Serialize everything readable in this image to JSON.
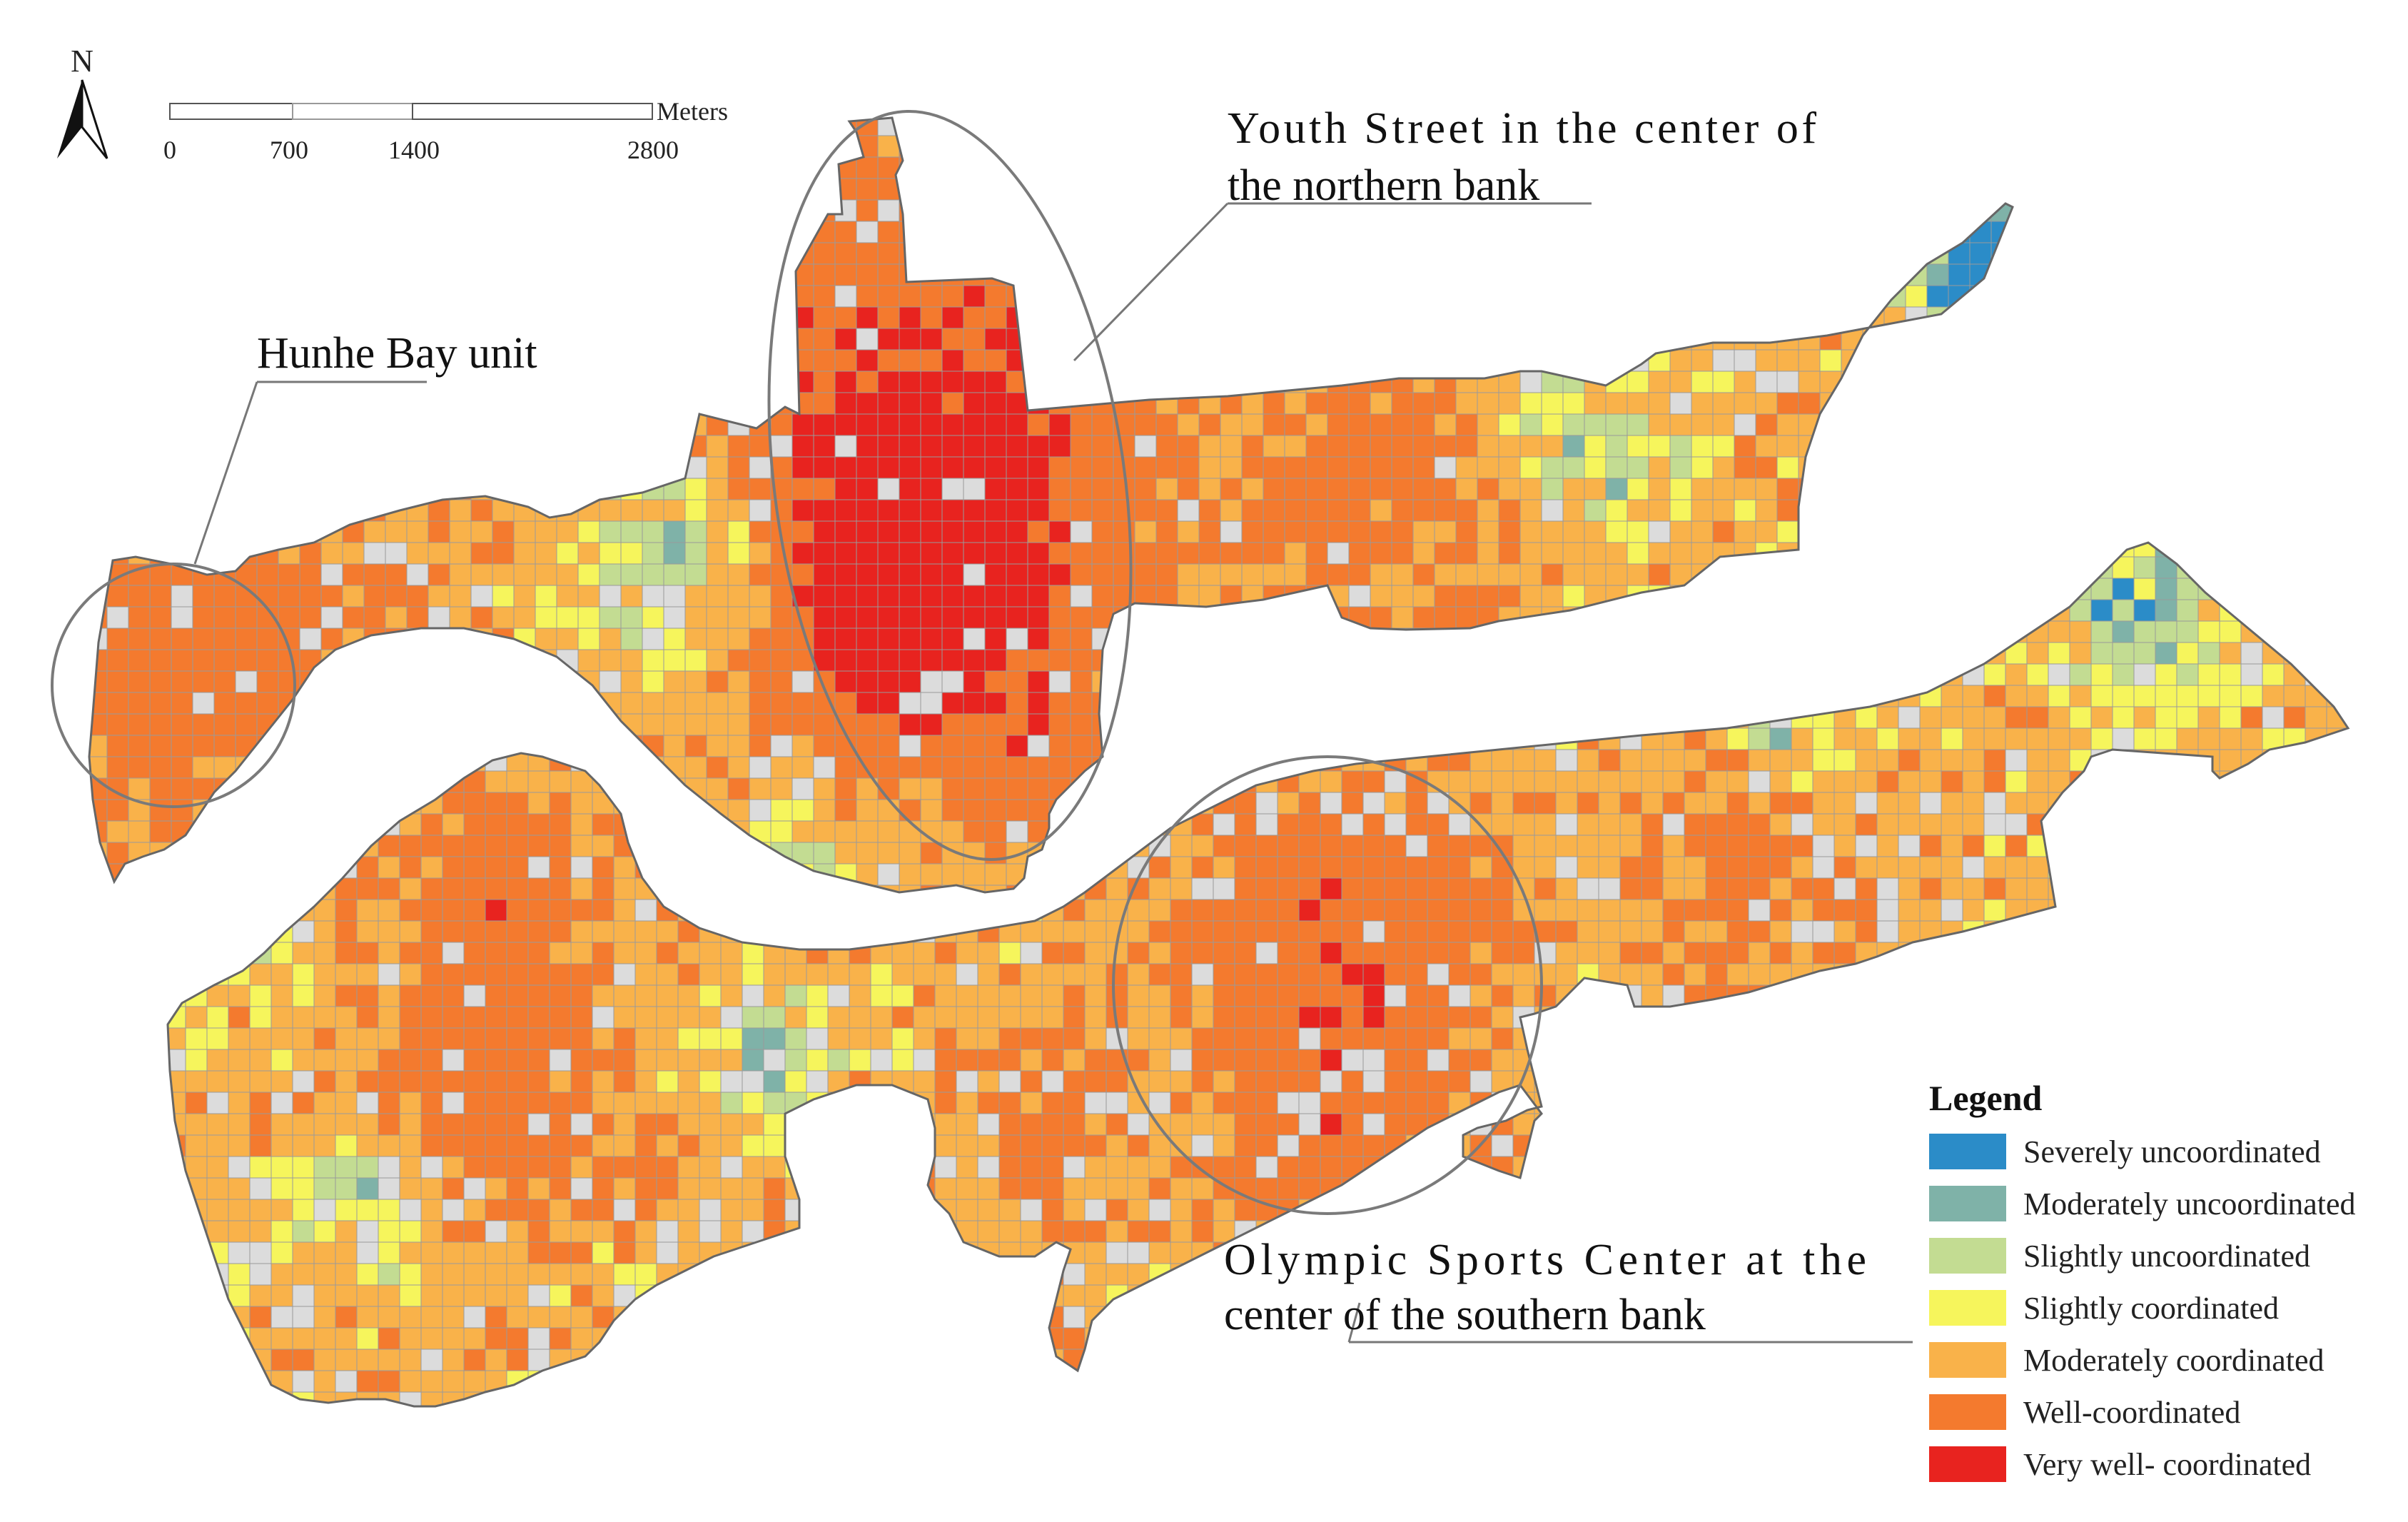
{
  "north_arrow": {
    "label": "N"
  },
  "scale_bar": {
    "unit": "Meters",
    "ticks": [
      "0",
      "700",
      "1400",
      "2800"
    ]
  },
  "annotations": {
    "hunhe_bay": "Hunhe Bay unit",
    "youth_street_line1": "Youth Street in the center of",
    "youth_street_line2": "the northern bank",
    "olympic_line1": "Olympic Sports Center at the",
    "olympic_line2": "center of the southern bank"
  },
  "legend": {
    "title": "Legend",
    "items": [
      {
        "label": "Severely uncoordinated",
        "color": "#2b8cc8"
      },
      {
        "label": "Moderately uncoordinated",
        "color": "#7fb2a8"
      },
      {
        "label": "Slightly uncoordinated",
        "color": "#c3dc92"
      },
      {
        "label": "Slightly coordinated",
        "color": "#f6f55c"
      },
      {
        "label": "Moderately coordinated",
        "color": "#f9b24a"
      },
      {
        "label": "Well-coordinated",
        "color": "#f47a2e"
      },
      {
        "label": "Very well- coordinated",
        "color": "#e8231f"
      }
    ],
    "unclassified_color": "#dcdcdc"
  }
}
